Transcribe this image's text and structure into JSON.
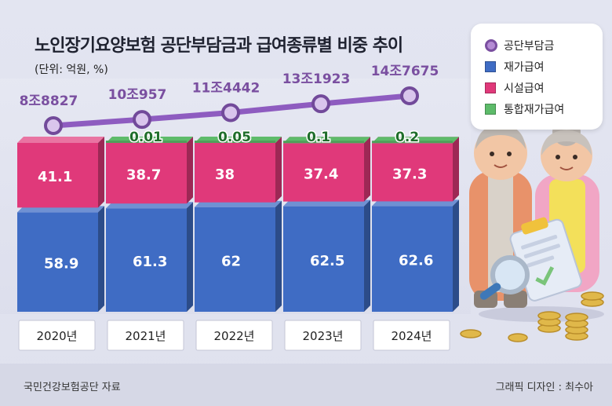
{
  "title": "노인장기요양보험 공단부담금과 급여종류별 비중 추이",
  "unit": "(단위: 억원, %)",
  "source": "국민건강보험공단 자료",
  "credit": "그래픽 디자인 : 최수아",
  "legend": [
    {
      "label": "공단부담금",
      "kind": "line",
      "color": "#8e5cc0"
    },
    {
      "label": "재가급여",
      "kind": "bar",
      "color": "#3f6cc4"
    },
    {
      "label": "시설급여",
      "kind": "bar",
      "color": "#e0397a"
    },
    {
      "label": "통합재가급여",
      "kind": "bar",
      "color": "#5dbb6a"
    }
  ],
  "chart_data": {
    "type": "bar",
    "stacked": true,
    "title": "노인장기요양보험 공단부담금과 급여종류별 비중 추이",
    "ylabel": "(단위: 억원, %)",
    "categories": [
      "2020년",
      "2021년",
      "2022년",
      "2023년",
      "2024년"
    ],
    "series": [
      {
        "name": "재가급여",
        "values": [
          58.9,
          61.3,
          62,
          62.5,
          62.6
        ],
        "labels": [
          "58.9",
          "61.3",
          "62",
          "62.5",
          "62.6"
        ],
        "color": "#3f6cc4"
      },
      {
        "name": "시설급여",
        "values": [
          41.1,
          38.7,
          38,
          37.4,
          37.3
        ],
        "labels": [
          "41.1",
          "38.7",
          "38",
          "37.4",
          "37.3"
        ],
        "color": "#e0397a"
      },
      {
        "name": "통합재가급여",
        "values": [
          0,
          0.01,
          0.05,
          0.1,
          0.2
        ],
        "labels": [
          "",
          "0.01",
          "0.05",
          "0.1",
          "0.2"
        ],
        "color": "#5dbb6a"
      }
    ],
    "line": {
      "name": "공단부담금",
      "values": [
        88827,
        100957,
        114442,
        131923,
        147675
      ],
      "labels": [
        "8조8827",
        "10조957",
        "11조4442",
        "13조1923",
        "14조7675"
      ],
      "color": "#8e5cc0"
    },
    "ylim": [
      0,
      100
    ]
  }
}
